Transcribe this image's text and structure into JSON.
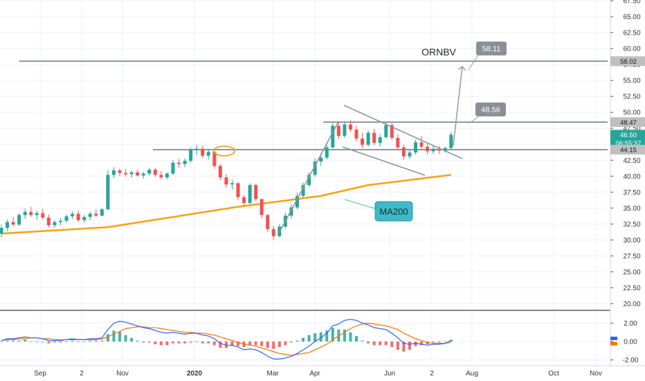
{
  "chart_data": [
    {
      "type": "candlestick",
      "title": "ORNBV",
      "price_axis_ticks": [
        "67.50",
        "65.00",
        "62.50",
        "60.00",
        "57.50",
        "55.00",
        "52.50",
        "50.00",
        "47.50",
        "45.00",
        "42.50",
        "40.00",
        "37.50",
        "35.00",
        "32.50",
        "30.00",
        "27.50",
        "25.00",
        "22.50",
        "20.00"
      ],
      "ylim": [
        20,
        68
      ],
      "x_axis_ticks": [
        "Sep",
        "2",
        "Nov",
        "2020",
        "Mar",
        "Apr",
        "Jun",
        "2",
        "Aug",
        "Oct",
        "Nov"
      ],
      "grid": true,
      "candles": [
        {
          "o": 31.0,
          "h": 32.4,
          "l": 30.4,
          "c": 31.9
        },
        {
          "o": 31.9,
          "h": 33.2,
          "l": 31.4,
          "c": 32.8
        },
        {
          "o": 32.8,
          "h": 33.6,
          "l": 32.1,
          "c": 32.4
        },
        {
          "o": 32.4,
          "h": 34.2,
          "l": 32.2,
          "c": 33.9
        },
        {
          "o": 33.9,
          "h": 34.9,
          "l": 33.3,
          "c": 34.4
        },
        {
          "o": 34.4,
          "h": 35.2,
          "l": 33.6,
          "c": 33.9
        },
        {
          "o": 33.9,
          "h": 34.6,
          "l": 33.1,
          "c": 34.2
        },
        {
          "o": 34.2,
          "h": 34.9,
          "l": 33.2,
          "c": 33.5
        },
        {
          "o": 33.5,
          "h": 34.0,
          "l": 32.0,
          "c": 32.3
        },
        {
          "o": 32.3,
          "h": 33.1,
          "l": 31.9,
          "c": 32.8
        },
        {
          "o": 32.8,
          "h": 33.4,
          "l": 32.3,
          "c": 33.0
        },
        {
          "o": 33.0,
          "h": 34.0,
          "l": 32.7,
          "c": 33.7
        },
        {
          "o": 33.7,
          "h": 34.5,
          "l": 33.3,
          "c": 34.1
        },
        {
          "o": 34.1,
          "h": 34.6,
          "l": 32.8,
          "c": 33.1
        },
        {
          "o": 33.1,
          "h": 33.9,
          "l": 32.7,
          "c": 33.6
        },
        {
          "o": 33.6,
          "h": 34.4,
          "l": 33.1,
          "c": 34.1
        },
        {
          "o": 34.1,
          "h": 34.8,
          "l": 33.6,
          "c": 33.8
        },
        {
          "o": 33.8,
          "h": 35.0,
          "l": 33.7,
          "c": 34.8
        },
        {
          "o": 34.8,
          "h": 41.0,
          "l": 34.6,
          "c": 40.2
        },
        {
          "o": 40.2,
          "h": 41.4,
          "l": 39.7,
          "c": 40.9
        },
        {
          "o": 40.9,
          "h": 41.2,
          "l": 40.0,
          "c": 40.5
        },
        {
          "o": 40.5,
          "h": 41.1,
          "l": 39.9,
          "c": 40.3
        },
        {
          "o": 40.3,
          "h": 40.9,
          "l": 39.8,
          "c": 40.6
        },
        {
          "o": 40.6,
          "h": 41.0,
          "l": 39.9,
          "c": 40.1
        },
        {
          "o": 40.1,
          "h": 40.7,
          "l": 39.6,
          "c": 40.4
        },
        {
          "o": 40.4,
          "h": 41.3,
          "l": 40.1,
          "c": 41.0
        },
        {
          "o": 41.0,
          "h": 41.3,
          "l": 39.9,
          "c": 40.2
        },
        {
          "o": 40.2,
          "h": 40.8,
          "l": 39.5,
          "c": 39.8
        },
        {
          "o": 39.8,
          "h": 40.6,
          "l": 39.5,
          "c": 40.4
        },
        {
          "o": 40.4,
          "h": 42.5,
          "l": 40.2,
          "c": 42.1
        },
        {
          "o": 42.1,
          "h": 42.7,
          "l": 41.3,
          "c": 41.9
        },
        {
          "o": 41.9,
          "h": 42.8,
          "l": 41.4,
          "c": 42.4
        },
        {
          "o": 42.4,
          "h": 44.5,
          "l": 42.1,
          "c": 44.1
        },
        {
          "o": 44.1,
          "h": 44.9,
          "l": 43.3,
          "c": 44.3
        },
        {
          "o": 44.3,
          "h": 44.8,
          "l": 42.8,
          "c": 43.2
        },
        {
          "o": 43.2,
          "h": 44.3,
          "l": 42.6,
          "c": 43.8
        },
        {
          "o": 43.8,
          "h": 44.4,
          "l": 41.2,
          "c": 41.6
        },
        {
          "o": 41.6,
          "h": 41.9,
          "l": 39.4,
          "c": 39.8
        },
        {
          "o": 39.8,
          "h": 40.3,
          "l": 38.2,
          "c": 38.7
        },
        {
          "o": 38.7,
          "h": 39.4,
          "l": 37.9,
          "c": 38.9
        },
        {
          "o": 38.9,
          "h": 39.0,
          "l": 36.2,
          "c": 36.7
        },
        {
          "o": 36.7,
          "h": 37.0,
          "l": 35.3,
          "c": 35.8
        },
        {
          "o": 35.8,
          "h": 38.9,
          "l": 35.6,
          "c": 38.6
        },
        {
          "o": 38.6,
          "h": 38.8,
          "l": 36.1,
          "c": 36.4
        },
        {
          "o": 36.4,
          "h": 36.5,
          "l": 33.4,
          "c": 33.9
        },
        {
          "o": 33.9,
          "h": 34.1,
          "l": 31.3,
          "c": 31.7
        },
        {
          "o": 31.7,
          "h": 32.2,
          "l": 30.0,
          "c": 30.6
        },
        {
          "o": 30.6,
          "h": 32.5,
          "l": 30.4,
          "c": 32.1
        },
        {
          "o": 32.1,
          "h": 34.3,
          "l": 31.8,
          "c": 33.8
        },
        {
          "o": 33.8,
          "h": 35.6,
          "l": 33.3,
          "c": 35.1
        },
        {
          "o": 35.1,
          "h": 37.4,
          "l": 34.8,
          "c": 36.9
        },
        {
          "o": 36.9,
          "h": 39.0,
          "l": 36.6,
          "c": 38.6
        },
        {
          "o": 38.6,
          "h": 40.6,
          "l": 38.3,
          "c": 40.2
        },
        {
          "o": 40.2,
          "h": 42.8,
          "l": 39.9,
          "c": 42.3
        },
        {
          "o": 42.3,
          "h": 43.6,
          "l": 41.6,
          "c": 42.9
        },
        {
          "o": 42.9,
          "h": 44.9,
          "l": 42.6,
          "c": 44.5
        },
        {
          "o": 44.5,
          "h": 48.3,
          "l": 44.3,
          "c": 47.9
        },
        {
          "o": 47.9,
          "h": 48.6,
          "l": 45.8,
          "c": 46.3
        },
        {
          "o": 46.3,
          "h": 48.5,
          "l": 46.0,
          "c": 48.1
        },
        {
          "o": 48.1,
          "h": 48.8,
          "l": 46.9,
          "c": 47.3
        },
        {
          "o": 47.3,
          "h": 47.9,
          "l": 45.4,
          "c": 45.9
        },
        {
          "o": 45.9,
          "h": 46.8,
          "l": 44.4,
          "c": 44.9
        },
        {
          "o": 44.9,
          "h": 47.2,
          "l": 44.6,
          "c": 46.8
        },
        {
          "o": 46.8,
          "h": 47.4,
          "l": 44.8,
          "c": 45.2
        },
        {
          "o": 45.2,
          "h": 46.6,
          "l": 44.6,
          "c": 46.1
        },
        {
          "o": 46.1,
          "h": 48.5,
          "l": 45.9,
          "c": 48.0
        },
        {
          "o": 48.0,
          "h": 48.3,
          "l": 45.6,
          "c": 46.0
        },
        {
          "o": 46.0,
          "h": 46.6,
          "l": 44.1,
          "c": 44.5
        },
        {
          "o": 44.5,
          "h": 44.9,
          "l": 42.6,
          "c": 43.1
        },
        {
          "o": 43.1,
          "h": 44.1,
          "l": 42.7,
          "c": 43.7
        },
        {
          "o": 43.7,
          "h": 45.7,
          "l": 43.4,
          "c": 45.3
        },
        {
          "o": 45.3,
          "h": 46.3,
          "l": 44.1,
          "c": 44.6
        },
        {
          "o": 44.6,
          "h": 45.1,
          "l": 43.4,
          "c": 43.9
        },
        {
          "o": 43.9,
          "h": 44.8,
          "l": 43.5,
          "c": 44.3
        },
        {
          "o": 44.3,
          "h": 44.7,
          "l": 43.5,
          "c": 44.0
        },
        {
          "o": 44.0,
          "h": 44.6,
          "l": 43.7,
          "c": 44.4
        },
        {
          "o": 44.4,
          "h": 46.9,
          "l": 44.3,
          "c": 46.5
        }
      ],
      "ma200": {
        "label": "MA200",
        "color": "#f7a21b",
        "points": [
          [
            0,
            31.0
          ],
          [
            18,
            32.0
          ],
          [
            40,
            35.2
          ],
          [
            54,
            36.9
          ],
          [
            62,
            38.6
          ],
          [
            76,
            40.2
          ]
        ]
      },
      "horizontal_lines": [
        {
          "value": 58.02,
          "color": "#787b86"
        },
        {
          "value": 48.47,
          "color": "#787b86"
        },
        {
          "value": 44.15,
          "color": "#787b86"
        }
      ],
      "annotations": {
        "target_high": "58.11",
        "target_low": "48.56",
        "symbol": "ORNBV"
      },
      "price_tags": [
        {
          "text": "58.02",
          "bg": "#bfbfbf",
          "fg": "#131722",
          "value": 58.02
        },
        {
          "text": "48.47",
          "bg": "#bfbfbf",
          "fg": "#131722",
          "value": 48.47
        },
        {
          "text": "46.50",
          "bg": "#26a69a",
          "fg": "#ffffff",
          "value": 46.5
        },
        {
          "text": "06:55:37",
          "bg": "#26a69a",
          "fg": "#ffffff",
          "value": 45.2
        },
        {
          "text": "44.15",
          "bg": "#bfbfbf",
          "fg": "#131722",
          "value": 44.15
        }
      ],
      "colors": {
        "up": "#26a69a",
        "down": "#ef5350",
        "ma": "#f7a21b",
        "line": "#787b86",
        "callout_bg": "#3fb8c7"
      }
    },
    {
      "type": "macd",
      "axis_ticks": [
        "2.00",
        "0.00",
        "-2.00"
      ],
      "ylim": [
        -2.6,
        2.9
      ],
      "macd": [
        0.1,
        0.3,
        0.3,
        0.4,
        0.5,
        0.4,
        0.4,
        0.3,
        0.1,
        0.1,
        0.1,
        0.2,
        0.3,
        0.2,
        0.2,
        0.3,
        0.3,
        0.4,
        1.3,
        2.0,
        2.2,
        2.1,
        1.9,
        1.7,
        1.5,
        1.4,
        1.2,
        1.0,
        0.9,
        1.0,
        0.9,
        0.8,
        0.9,
        0.9,
        0.7,
        0.6,
        0.3,
        -0.2,
        -0.4,
        -0.4,
        -0.6,
        -0.9,
        -0.8,
        -0.9,
        -1.2,
        -1.6,
        -1.9,
        -1.9,
        -1.8,
        -1.6,
        -1.3,
        -0.9,
        -0.5,
        0.0,
        0.4,
        0.9,
        1.7,
        1.9,
        2.3,
        2.4,
        2.3,
        2.0,
        1.8,
        1.5,
        1.4,
        1.3,
        0.9,
        0.4,
        -0.2,
        -0.3,
        -0.2,
        -0.3,
        -0.4,
        -0.3,
        -0.3,
        -0.2,
        0.1
      ],
      "signal": [
        0.1,
        0.2,
        0.2,
        0.3,
        0.3,
        0.4,
        0.4,
        0.3,
        0.3,
        0.2,
        0.2,
        0.2,
        0.2,
        0.2,
        0.2,
        0.2,
        0.2,
        0.3,
        0.5,
        0.8,
        1.1,
        1.4,
        1.5,
        1.6,
        1.6,
        1.5,
        1.5,
        1.4,
        1.3,
        1.2,
        1.1,
        1.0,
        1.0,
        0.9,
        0.9,
        0.8,
        0.7,
        0.5,
        0.3,
        0.1,
        -0.1,
        -0.3,
        -0.4,
        -0.5,
        -0.7,
        -0.9,
        -1.1,
        -1.3,
        -1.4,
        -1.5,
        -1.4,
        -1.3,
        -1.2,
        -0.9,
        -0.6,
        -0.3,
        0.2,
        0.6,
        1.0,
        1.4,
        1.7,
        1.9,
        2.0,
        1.9,
        1.8,
        1.7,
        1.5,
        1.3,
        0.9,
        0.6,
        0.3,
        0.1,
        -0.1,
        -0.2,
        -0.2,
        -0.2,
        -0.1
      ],
      "colors": {
        "macd": "#2962ff",
        "signal": "#ff6d00",
        "hist_up": "#26a69a",
        "hist_down": "#ef5350"
      }
    }
  ]
}
